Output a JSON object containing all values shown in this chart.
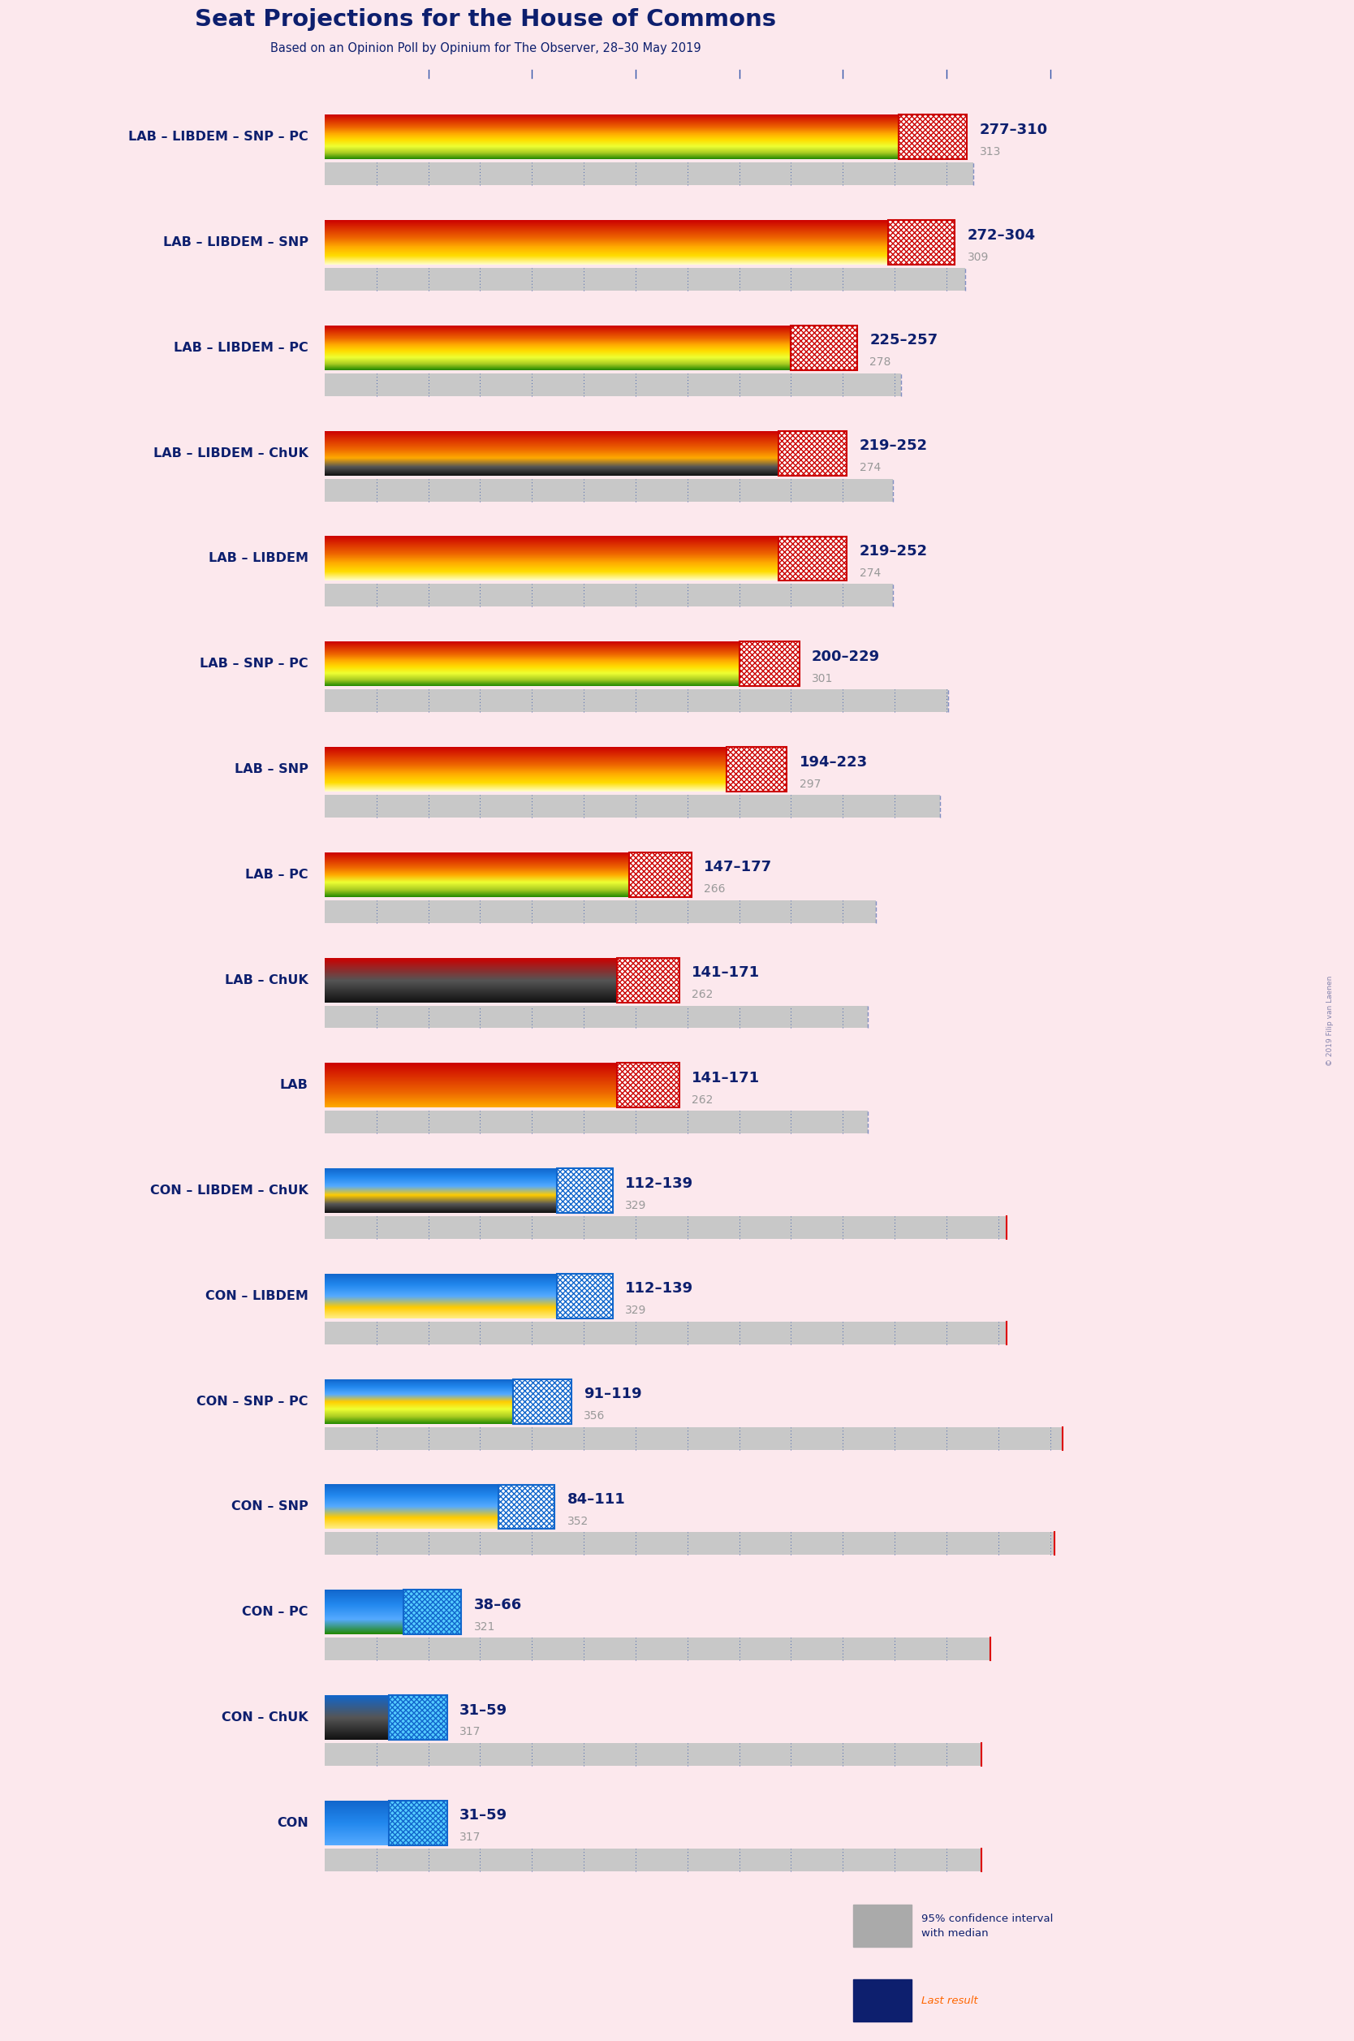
{
  "title": "Seat Projections for the House of Commons",
  "subtitle": "Based on an Opinion Poll by Opinium for The Observer, 28–30 May 2019",
  "background_color": "#fce8ed",
  "title_color": "#0d1f6e",
  "subtitle_color": "#0d1f6e",
  "x_max": 370,
  "majority_line": 326,
  "coalitions": [
    {
      "name": "LAB – LIBDEM – SNP – PC",
      "low": 277,
      "high": 310,
      "last_result": 313,
      "bar_colors": [
        "#cc0000",
        "#dd3300",
        "#ee6600",
        "#ffaa00",
        "#ffdd00",
        "#eeff33",
        "#aacc22",
        "#228800"
      ],
      "hatch_color": "#cc0000",
      "hatch_bg": "#ffffff",
      "type": "lab"
    },
    {
      "name": "LAB – LIBDEM – SNP",
      "low": 272,
      "high": 304,
      "last_result": 309,
      "bar_colors": [
        "#cc0000",
        "#dd3300",
        "#ee6600",
        "#ffaa00",
        "#ffdd00",
        "#ffffcc"
      ],
      "hatch_color": "#cc0000",
      "hatch_bg": "#ffffff",
      "type": "lab"
    },
    {
      "name": "LAB – LIBDEM – PC",
      "low": 225,
      "high": 257,
      "last_result": 278,
      "bar_colors": [
        "#cc0000",
        "#dd3300",
        "#ee6600",
        "#ffaa00",
        "#ffdd00",
        "#eeff33",
        "#aacc22",
        "#228800"
      ],
      "hatch_color": "#cc0000",
      "hatch_bg": "#ffffff",
      "type": "lab"
    },
    {
      "name": "LAB – LIBDEM – ChUK",
      "low": 219,
      "high": 252,
      "last_result": 274,
      "bar_colors": [
        "#cc0000",
        "#dd3300",
        "#ee6600",
        "#ffaa00",
        "#555555",
        "#111111"
      ],
      "hatch_color": "#cc0000",
      "hatch_bg": "#ffffff",
      "type": "lab"
    },
    {
      "name": "LAB – LIBDEM",
      "low": 219,
      "high": 252,
      "last_result": 274,
      "bar_colors": [
        "#cc0000",
        "#dd3300",
        "#ee6600",
        "#ffaa00",
        "#ffdd00",
        "#ffffcc"
      ],
      "hatch_color": "#cc0000",
      "hatch_bg": "#ffffff",
      "type": "lab"
    },
    {
      "name": "LAB – SNP – PC",
      "low": 200,
      "high": 229,
      "last_result": 301,
      "bar_colors": [
        "#cc0000",
        "#dd3300",
        "#ee6600",
        "#ffaa00",
        "#ffdd00",
        "#eeff33",
        "#aacc22",
        "#228800"
      ],
      "hatch_color": "#cc0000",
      "hatch_bg": "#ffffff",
      "type": "lab"
    },
    {
      "name": "LAB – SNP",
      "low": 194,
      "high": 223,
      "last_result": 297,
      "bar_colors": [
        "#cc0000",
        "#dd3300",
        "#ee6600",
        "#ffaa00",
        "#ffdd00",
        "#ffffcc"
      ],
      "hatch_color": "#cc0000",
      "hatch_bg": "#ffffff",
      "type": "lab"
    },
    {
      "name": "LAB – PC",
      "low": 147,
      "high": 177,
      "last_result": 266,
      "bar_colors": [
        "#cc0000",
        "#dd3300",
        "#ee6600",
        "#ffaa00",
        "#eeff33",
        "#aacc22",
        "#228800"
      ],
      "hatch_color": "#cc0000",
      "hatch_bg": "#ffffff",
      "type": "lab"
    },
    {
      "name": "LAB – ChUK",
      "low": 141,
      "high": 171,
      "last_result": 262,
      "bar_colors": [
        "#cc0000",
        "#555555",
        "#111111"
      ],
      "hatch_color": "#cc0000",
      "hatch_bg": "#ffffff",
      "type": "lab"
    },
    {
      "name": "LAB",
      "low": 141,
      "high": 171,
      "last_result": 262,
      "bar_colors": [
        "#cc0000",
        "#dd3300",
        "#ee6600",
        "#ffaa00"
      ],
      "hatch_color": "#cc0000",
      "hatch_bg": "#ffffff",
      "type": "lab"
    },
    {
      "name": "CON – LIBDEM – ChUK",
      "low": 112,
      "high": 139,
      "last_result": 329,
      "bar_colors": [
        "#1166cc",
        "#2288ee",
        "#55aaff",
        "#ffcc00",
        "#555555",
        "#111111"
      ],
      "hatch_color": "#1166cc",
      "hatch_bg": "#ffffff",
      "type": "con"
    },
    {
      "name": "CON – LIBDEM",
      "low": 112,
      "high": 139,
      "last_result": 329,
      "bar_colors": [
        "#1166cc",
        "#2288ee",
        "#55aaff",
        "#ffcc00",
        "#ffee88"
      ],
      "hatch_color": "#1166cc",
      "hatch_bg": "#ffffff",
      "type": "con"
    },
    {
      "name": "CON – SNP – PC",
      "low": 91,
      "high": 119,
      "last_result": 356,
      "bar_colors": [
        "#1166cc",
        "#2288ee",
        "#55aaff",
        "#ffcc00",
        "#eeff33",
        "#aacc22",
        "#228800"
      ],
      "hatch_color": "#1166cc",
      "hatch_bg": "#ffffff",
      "type": "con"
    },
    {
      "name": "CON – SNP",
      "low": 84,
      "high": 111,
      "last_result": 352,
      "bar_colors": [
        "#1166cc",
        "#2288ee",
        "#55aaff",
        "#ffcc00",
        "#ffee88"
      ],
      "hatch_color": "#1166cc",
      "hatch_bg": "#ffffff",
      "type": "con"
    },
    {
      "name": "CON – PC",
      "low": 38,
      "high": 66,
      "last_result": 321,
      "bar_colors": [
        "#1166cc",
        "#2288ee",
        "#55aaff",
        "#228800"
      ],
      "hatch_color": "#1166cc",
      "hatch_bg": "#55ccff",
      "type": "con"
    },
    {
      "name": "CON – ChUK",
      "low": 31,
      "high": 59,
      "last_result": 317,
      "bar_colors": [
        "#1166cc",
        "#555555",
        "#111111"
      ],
      "hatch_color": "#1166cc",
      "hatch_bg": "#55ccff",
      "type": "con"
    },
    {
      "name": "CON",
      "low": 31,
      "high": 59,
      "last_result": 317,
      "bar_colors": [
        "#1166cc",
        "#2288ee",
        "#55aaff"
      ],
      "hatch_color": "#1166cc",
      "hatch_bg": "#55ccff",
      "type": "con"
    }
  ]
}
